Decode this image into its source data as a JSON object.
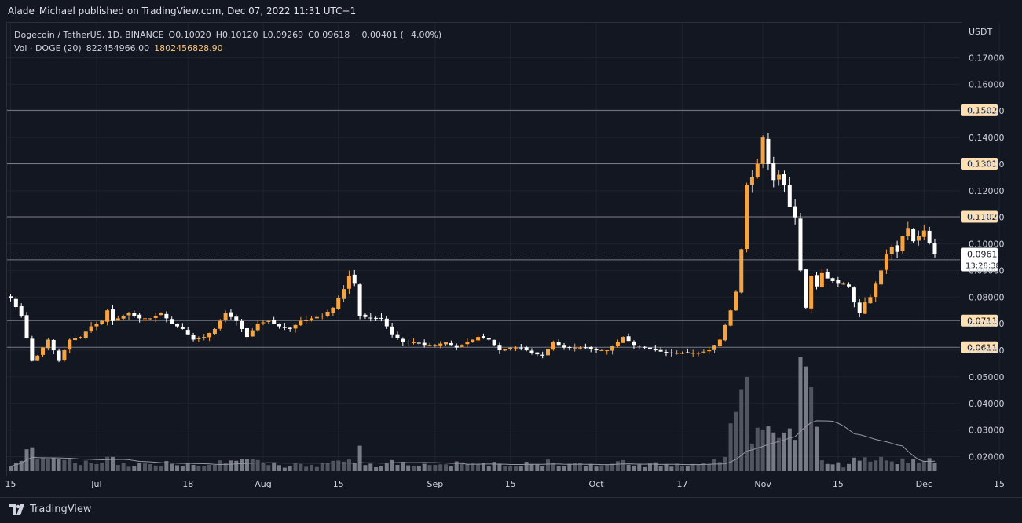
{
  "header": {
    "published": "Alade_Michael published on TradingView.com, Dec 07, 2022 11:31 UTC+1"
  },
  "legend": {
    "symbol": "Dogecoin / TetherUS, 1D, BINANCE",
    "open": "O0.10020",
    "high": "H0.10120",
    "low": "L0.09269",
    "close": "C0.09618",
    "change": "−0.00401 (−4.00%)",
    "vol_label": "Vol · DOGE (20)",
    "vol_value": "822454966.00",
    "vol_ma": "1802456828.90"
  },
  "footer": {
    "brand": "TradingView"
  },
  "colors": {
    "background": "#131722",
    "up_candle": "#f7a440",
    "down_candle": "#ffffff",
    "level_line": "#787b86",
    "level_tag_bg": "#ffe0b2",
    "price_tag_bg": "#ffffff"
  },
  "chart_data": {
    "type": "candlestick",
    "y_axis_unit": "USDT",
    "ylim": [
      0.015,
      0.176
    ],
    "y_ticks": [
      "0.17000",
      "0.16000",
      "0.15000",
      "0.14000",
      "0.13000",
      "0.12000",
      "0.11000",
      "0.10000",
      "0.09000",
      "0.08000",
      "0.07000",
      "0.06000",
      "0.05000",
      "0.04000",
      "0.03000",
      "0.02000"
    ],
    "x_tick_labels": [
      {
        "label": "15",
        "day": 0
      },
      {
        "label": "Jul",
        "day": 16
      },
      {
        "label": "18",
        "day": 33
      },
      {
        "label": "Aug",
        "day": 47
      },
      {
        "label": "15",
        "day": 61
      },
      {
        "label": "Sep",
        "day": 79
      },
      {
        "label": "15",
        "day": 93
      },
      {
        "label": "Oct",
        "day": 109
      },
      {
        "label": "17",
        "day": 125
      },
      {
        "label": "Nov",
        "day": 140
      },
      {
        "label": "15",
        "day": 154
      },
      {
        "label": "Dec",
        "day": 170
      },
      {
        "label": "15",
        "day": 184
      }
    ],
    "horizontal_levels": [
      "0.15025",
      "0.13013",
      "0.11022",
      "0.09401",
      "0.07115",
      "0.06111"
    ],
    "last_price": "0.09618",
    "countdown": "13:28:38",
    "close_anchors": [
      [
        0,
        0.0795
      ],
      [
        2,
        0.073
      ],
      [
        4,
        0.056
      ],
      [
        5,
        0.058
      ],
      [
        7,
        0.064
      ],
      [
        9,
        0.056
      ],
      [
        11,
        0.064
      ],
      [
        13,
        0.065
      ],
      [
        15,
        0.069
      ],
      [
        17,
        0.071
      ],
      [
        18,
        0.075
      ],
      [
        19,
        0.071
      ],
      [
        22,
        0.074
      ],
      [
        24,
        0.072
      ],
      [
        26,
        0.072
      ],
      [
        28,
        0.074
      ],
      [
        30,
        0.07
      ],
      [
        32,
        0.068
      ],
      [
        34,
        0.064
      ],
      [
        36,
        0.065
      ],
      [
        38,
        0.068
      ],
      [
        40,
        0.074
      ],
      [
        42,
        0.071
      ],
      [
        44,
        0.065
      ],
      [
        46,
        0.07
      ],
      [
        48,
        0.071
      ],
      [
        50,
        0.069
      ],
      [
        52,
        0.068
      ],
      [
        54,
        0.071
      ],
      [
        56,
        0.072
      ],
      [
        58,
        0.073
      ],
      [
        60,
        0.076
      ],
      [
        62,
        0.083
      ],
      [
        63,
        0.088
      ],
      [
        64,
        0.085
      ],
      [
        65,
        0.073
      ],
      [
        67,
        0.072
      ],
      [
        69,
        0.072
      ],
      [
        71,
        0.066
      ],
      [
        73,
        0.063
      ],
      [
        75,
        0.063
      ],
      [
        77,
        0.062
      ],
      [
        79,
        0.062
      ],
      [
        81,
        0.063
      ],
      [
        83,
        0.061
      ],
      [
        85,
        0.063
      ],
      [
        87,
        0.065
      ],
      [
        89,
        0.064
      ],
      [
        91,
        0.06
      ],
      [
        93,
        0.061
      ],
      [
        95,
        0.061
      ],
      [
        97,
        0.059
      ],
      [
        99,
        0.058
      ],
      [
        101,
        0.063
      ],
      [
        103,
        0.061
      ],
      [
        105,
        0.061
      ],
      [
        107,
        0.061
      ],
      [
        109,
        0.06
      ],
      [
        111,
        0.06
      ],
      [
        113,
        0.063
      ],
      [
        114,
        0.065
      ],
      [
        116,
        0.062
      ],
      [
        118,
        0.061
      ],
      [
        120,
        0.06
      ],
      [
        122,
        0.059
      ],
      [
        124,
        0.059
      ],
      [
        126,
        0.059
      ],
      [
        128,
        0.059
      ],
      [
        130,
        0.06
      ],
      [
        132,
        0.064
      ],
      [
        134,
        0.075
      ],
      [
        135,
        0.082
      ],
      [
        136,
        0.098
      ],
      [
        137,
        0.122
      ],
      [
        138,
        0.125
      ],
      [
        139,
        0.13
      ],
      [
        140,
        0.14
      ],
      [
        141,
        0.13
      ],
      [
        142,
        0.124
      ],
      [
        143,
        0.126
      ],
      [
        144,
        0.122
      ],
      [
        145,
        0.114
      ],
      [
        146,
        0.11
      ],
      [
        147,
        0.09
      ],
      [
        148,
        0.076
      ],
      [
        149,
        0.088
      ],
      [
        150,
        0.084
      ],
      [
        151,
        0.089
      ],
      [
        152,
        0.087
      ],
      [
        153,
        0.086
      ],
      [
        154,
        0.085
      ],
      [
        155,
        0.085
      ],
      [
        156,
        0.084
      ],
      [
        157,
        0.078
      ],
      [
        158,
        0.074
      ],
      [
        159,
        0.078
      ],
      [
        160,
        0.08
      ],
      [
        161,
        0.085
      ],
      [
        162,
        0.09
      ],
      [
        163,
        0.096
      ],
      [
        164,
        0.099
      ],
      [
        165,
        0.097
      ],
      [
        166,
        0.103
      ],
      [
        167,
        0.106
      ],
      [
        168,
        0.101
      ],
      [
        169,
        0.103
      ],
      [
        170,
        0.105
      ],
      [
        171,
        0.1002
      ],
      [
        172,
        0.09618
      ]
    ],
    "volume_ma_note": "20-period moving average of volume"
  }
}
